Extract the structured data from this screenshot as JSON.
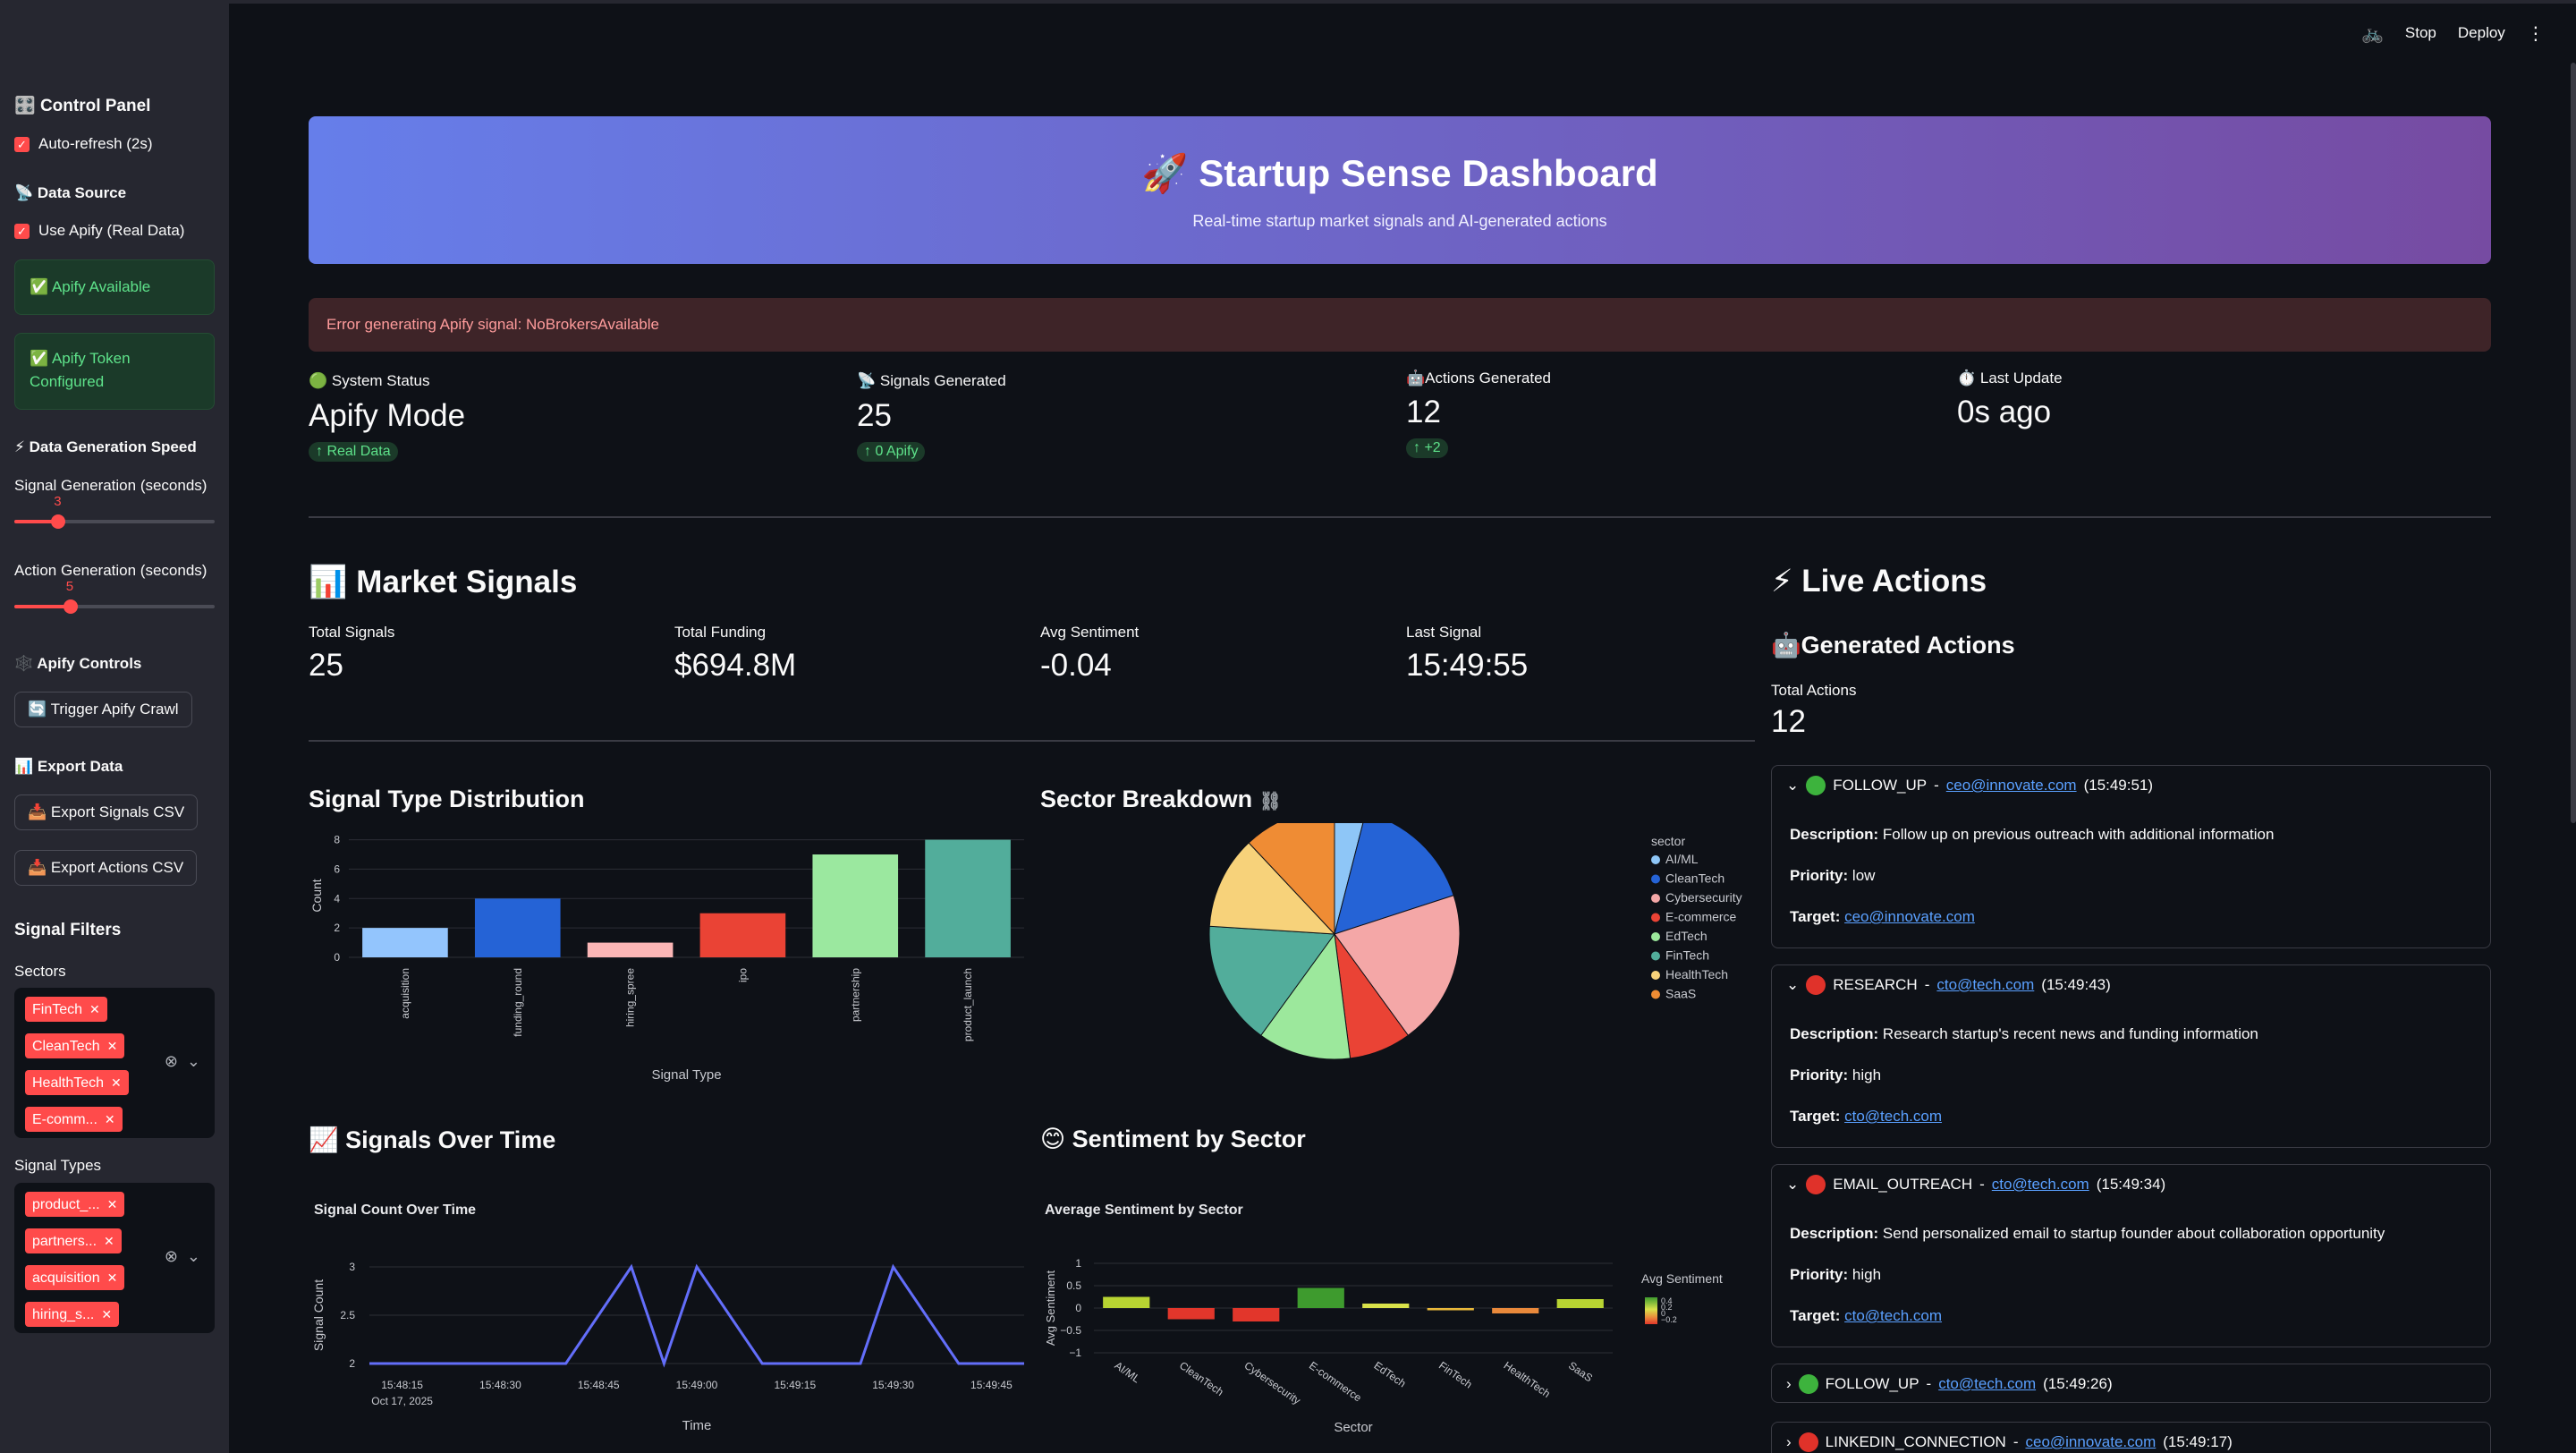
{
  "sidebar": {
    "control_panel": "Control Panel",
    "auto_refresh": "Auto-refresh (2s)",
    "data_source": "Data Source",
    "use_apify": "Use Apify (Real Data)",
    "apify_available": "✅ Apify Available",
    "apify_token_line1": "✅ Apify Token",
    "apify_token_line2": "Configured",
    "speed_heading": "⚡ Data Generation Speed",
    "signal_gen_label": "Signal Generation (seconds)",
    "signal_gen_value": "3",
    "signal_gen_fraction": 0.22,
    "action_gen_label": "Action Generation (seconds)",
    "action_gen_value": "5",
    "action_gen_fraction": 0.28,
    "apify_controls": "Apify Controls",
    "trigger_crawl": "🔄 Trigger Apify Crawl",
    "export_heading": "📊 Export Data",
    "export_signals": "📥 Export Signals CSV",
    "export_actions": "📥 Export Actions CSV",
    "filters_heading": "Signal Filters",
    "sectors_label": "Sectors",
    "sectors": [
      "FinTech",
      "CleanTech",
      "HealthTech",
      "E-comm..."
    ],
    "types_label": "Signal Types",
    "types": [
      "product_...",
      "partners...",
      "acquisition",
      "hiring_s..."
    ]
  },
  "topbar": {
    "stop": "Stop",
    "deploy": "Deploy"
  },
  "hero": {
    "title": "🚀 Startup Sense Dashboard",
    "subtitle": "Real-time startup market signals and AI-generated actions"
  },
  "error": "Error generating Apify signal: NoBrokersAvailable",
  "metrics": [
    {
      "label": "🟢 System Status",
      "value": "Apify Mode",
      "delta": "↑ Real Data"
    },
    {
      "label": "📡 Signals Generated",
      "value": "25",
      "delta": "↑ 0 Apify"
    },
    {
      "label": "🤖Actions Generated",
      "value": "12",
      "delta": "↑ +2"
    },
    {
      "label": "⏱️ Last Update",
      "value": "0s ago",
      "delta": ""
    }
  ],
  "market": {
    "title": "📊 Market Signals",
    "stats": [
      {
        "label": "Total Signals",
        "value": "25"
      },
      {
        "label": "Total Funding",
        "value": "$694.8M"
      },
      {
        "label": "Avg Sentiment",
        "value": "-0.04"
      },
      {
        "label": "Last Signal",
        "value": "15:49:55"
      }
    ],
    "type_dist_title": "Signal Type Distribution",
    "sector_title": "Sector Breakdown",
    "over_time_title": "📈 Signals Over Time",
    "sentiment_title": "😊 Sentiment by Sector"
  },
  "chart_data": [
    {
      "type": "bar",
      "title": "Signal Type Distribution",
      "xlabel": "Signal Type",
      "ylabel": "Count",
      "categories": [
        "acquisition",
        "funding_round",
        "hiring_spree",
        "ipo",
        "partnership",
        "product_launch"
      ],
      "values": [
        2,
        4,
        1,
        3,
        7,
        8
      ],
      "colors": [
        "#93c5fd",
        "#2563d6",
        "#fbb6b6",
        "#ea4335",
        "#9be89f",
        "#52ad9b"
      ],
      "yticks": [
        0,
        2,
        4,
        6,
        8
      ],
      "ylim": [
        0,
        8.4
      ]
    },
    {
      "type": "pie",
      "title": "Sector Breakdown",
      "legend_title": "sector",
      "legend_position": "right",
      "labels": [
        "AI/ML",
        "CleanTech",
        "Cybersecurity",
        "E-commerce",
        "EdTech",
        "FinTech",
        "HealthTech",
        "SaaS"
      ],
      "values": [
        1,
        4,
        5,
        2,
        3,
        4,
        3,
        3
      ],
      "colors": [
        "#8ec6f7",
        "#2563d6",
        "#f4a7a7",
        "#ea4335",
        "#9ce89c",
        "#52ad9b",
        "#f7d27a",
        "#ef8c34"
      ]
    },
    {
      "type": "line",
      "title": "Signal Count Over Time",
      "xlabel": "Time",
      "ylabel": "Signal Count",
      "x": [
        "15:48:10",
        "15:48:20",
        "15:48:30",
        "15:48:40",
        "15:48:50",
        "15:48:55",
        "15:49:00",
        "15:49:10",
        "15:49:20",
        "15:49:25",
        "15:49:30",
        "15:49:40",
        "15:49:50"
      ],
      "y": [
        2,
        2,
        2,
        2,
        3,
        2,
        3,
        2,
        2,
        2,
        3,
        2,
        2
      ],
      "xticks": [
        "15:48:15",
        "15:48:30",
        "15:48:45",
        "15:49:00",
        "15:49:15",
        "15:49:30",
        "15:49:45"
      ],
      "xtick_sub": "Oct 17, 2025",
      "yticks": [
        "2",
        "2.5",
        "3"
      ],
      "ylim": [
        2,
        3
      ],
      "color": "#636efa"
    },
    {
      "type": "bar",
      "title": "Average Sentiment by Sector",
      "xlabel": "Sector",
      "ylabel": "Avg Sentiment",
      "categories": [
        "AI/ML",
        "CleanTech",
        "Cybersecurity",
        "E-commerce",
        "EdTech",
        "FinTech",
        "HealthTech",
        "SaaS"
      ],
      "values": [
        0.25,
        -0.25,
        -0.3,
        0.45,
        0.1,
        -0.05,
        -0.12,
        0.2
      ],
      "colors": [
        "#b8d432",
        "#e2362b",
        "#e2362b",
        "#3e9b2e",
        "#d9e24a",
        "#e9b93b",
        "#e9893b",
        "#b8d432"
      ],
      "yticks": [
        "1",
        "0.5",
        "0",
        "−0.5",
        "−1"
      ],
      "ylim": [
        -1,
        1
      ],
      "colorbar_title": "Avg Sentiment",
      "colorbar_ticks": [
        "0.4",
        "0.2",
        "0",
        "−0.2"
      ]
    }
  ],
  "live": {
    "title": "⚡ Live Actions",
    "subtitle": "🤖Generated Actions",
    "total_label": "Total Actions",
    "total_value": "12",
    "actions": [
      {
        "dot": "#3db33d",
        "type": "FOLLOW_UP",
        "sep": " - ",
        "target": "ceo@innovate.com",
        "time": " (15:49:51)",
        "expanded": true,
        "desc_label": "Description:",
        "desc": " Follow up on previous outreach with additional information",
        "prio_label": "Priority:",
        "prio": " low",
        "target_label": "Target:"
      },
      {
        "dot": "#e0322a",
        "type": "RESEARCH",
        "sep": " - ",
        "target": "cto@tech.com",
        "time": " (15:49:43)",
        "expanded": true,
        "desc_label": "Description:",
        "desc": " Research startup's recent news and funding information",
        "prio_label": "Priority:",
        "prio": " high",
        "target_label": "Target:"
      },
      {
        "dot": "#e0322a",
        "type": "EMAIL_OUTREACH",
        "sep": " - ",
        "target": "cto@tech.com",
        "time": " (15:49:34)",
        "expanded": true,
        "desc_label": "Description:",
        "desc": " Send personalized email to startup founder about collaboration opportunity",
        "prio_label": "Priority:",
        "prio": " high",
        "target_label": "Target:"
      },
      {
        "dot": "#3db33d",
        "type": "FOLLOW_UP",
        "sep": " - ",
        "target": "cto@tech.com",
        "time": " (15:49:26)",
        "expanded": false
      },
      {
        "dot": "#e0322a",
        "type": "LINKEDIN_CONNECTION",
        "sep": " - ",
        "target": "ceo@innovate.com",
        "time": " (15:49:17)",
        "expanded": false
      }
    ]
  }
}
